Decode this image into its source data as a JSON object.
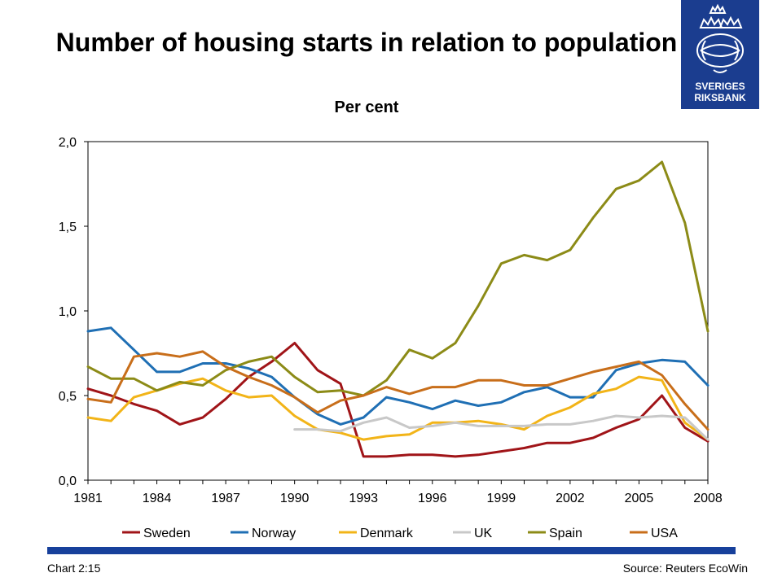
{
  "header": {
    "title": "Number of housing starts in relation to population",
    "subtitle": "Per cent"
  },
  "logo": {
    "text_line1": "SVERIGES",
    "text_line2": "RIKSBANK",
    "icon": "riksbank-crest-icon",
    "color": "#1b3d8f"
  },
  "footer": {
    "left": "Chart 2:15",
    "right": "Source: Reuters EcoWin"
  },
  "chart_data": {
    "type": "line",
    "title": "Number of housing starts in relation to population",
    "subtitle": "Per cent",
    "ylim": [
      0,
      2
    ],
    "yticks": [
      0,
      0.5,
      1,
      1.5,
      2
    ],
    "ytick_labels": [
      "0,0",
      "0,5",
      "1,0",
      "1,5",
      "2,0"
    ],
    "xlim": [
      1981,
      2008
    ],
    "xticks": [
      1981,
      1984,
      1987,
      1990,
      1993,
      1996,
      1999,
      2002,
      2005,
      2008
    ],
    "grid": false,
    "legend_position": "bottom",
    "x": [
      1981,
      1982,
      1983,
      1984,
      1985,
      1986,
      1987,
      1988,
      1989,
      1990,
      1991,
      1992,
      1993,
      1994,
      1995,
      1996,
      1997,
      1998,
      1999,
      2000,
      2001,
      2002,
      2003,
      2004,
      2005,
      2006,
      2007,
      2008
    ],
    "series": [
      {
        "name": "Sweden",
        "color": "#a01418",
        "values": [
          0.54,
          0.5,
          0.45,
          0.41,
          0.33,
          0.37,
          0.48,
          0.61,
          0.7,
          0.81,
          0.65,
          0.57,
          0.14,
          0.14,
          0.15,
          0.15,
          0.14,
          0.15,
          0.17,
          0.19,
          0.22,
          0.22,
          0.25,
          0.31,
          0.36,
          0.5,
          0.31,
          0.23
        ]
      },
      {
        "name": "Norway",
        "color": "#1f6fb4",
        "values": [
          0.88,
          0.9,
          0.77,
          0.64,
          0.64,
          0.69,
          0.69,
          0.66,
          0.61,
          0.49,
          0.39,
          0.33,
          0.37,
          0.49,
          0.46,
          0.42,
          0.47,
          0.44,
          0.46,
          0.52,
          0.55,
          0.49,
          0.49,
          0.65,
          0.69,
          0.71,
          0.7,
          0.56
        ]
      },
      {
        "name": "Denmark",
        "color": "#f2b418",
        "values": [
          0.37,
          0.35,
          0.49,
          0.53,
          0.57,
          0.6,
          0.53,
          0.49,
          0.5,
          0.38,
          0.3,
          0.28,
          0.24,
          0.26,
          0.27,
          0.34,
          0.34,
          0.35,
          0.33,
          0.3,
          0.38,
          0.43,
          0.51,
          0.54,
          0.61,
          0.59,
          0.34,
          0.24
        ]
      },
      {
        "name": "UK",
        "color": "#c8c8c8",
        "values": [
          null,
          null,
          null,
          null,
          null,
          null,
          null,
          null,
          null,
          0.3,
          0.3,
          0.29,
          0.34,
          0.37,
          0.31,
          0.32,
          0.34,
          0.32,
          0.32,
          0.32,
          0.33,
          0.33,
          0.35,
          0.38,
          0.37,
          0.38,
          0.37,
          0.24
        ]
      },
      {
        "name": "Spain",
        "color": "#8c8b17",
        "values": [
          0.67,
          0.6,
          0.6,
          0.53,
          0.58,
          0.56,
          0.65,
          0.7,
          0.73,
          0.61,
          0.52,
          0.53,
          0.5,
          0.59,
          0.77,
          0.72,
          0.81,
          1.03,
          1.28,
          1.33,
          1.3,
          1.36,
          1.55,
          1.72,
          1.77,
          1.88,
          1.52,
          0.88
        ]
      },
      {
        "name": "USA",
        "color": "#c86e1a",
        "values": [
          0.48,
          0.46,
          0.73,
          0.75,
          0.73,
          0.76,
          0.67,
          0.61,
          0.56,
          0.49,
          0.4,
          0.47,
          0.5,
          0.55,
          0.51,
          0.55,
          0.55,
          0.59,
          0.59,
          0.56,
          0.56,
          0.6,
          0.64,
          0.67,
          0.7,
          0.62,
          0.45,
          0.3
        ]
      }
    ]
  }
}
